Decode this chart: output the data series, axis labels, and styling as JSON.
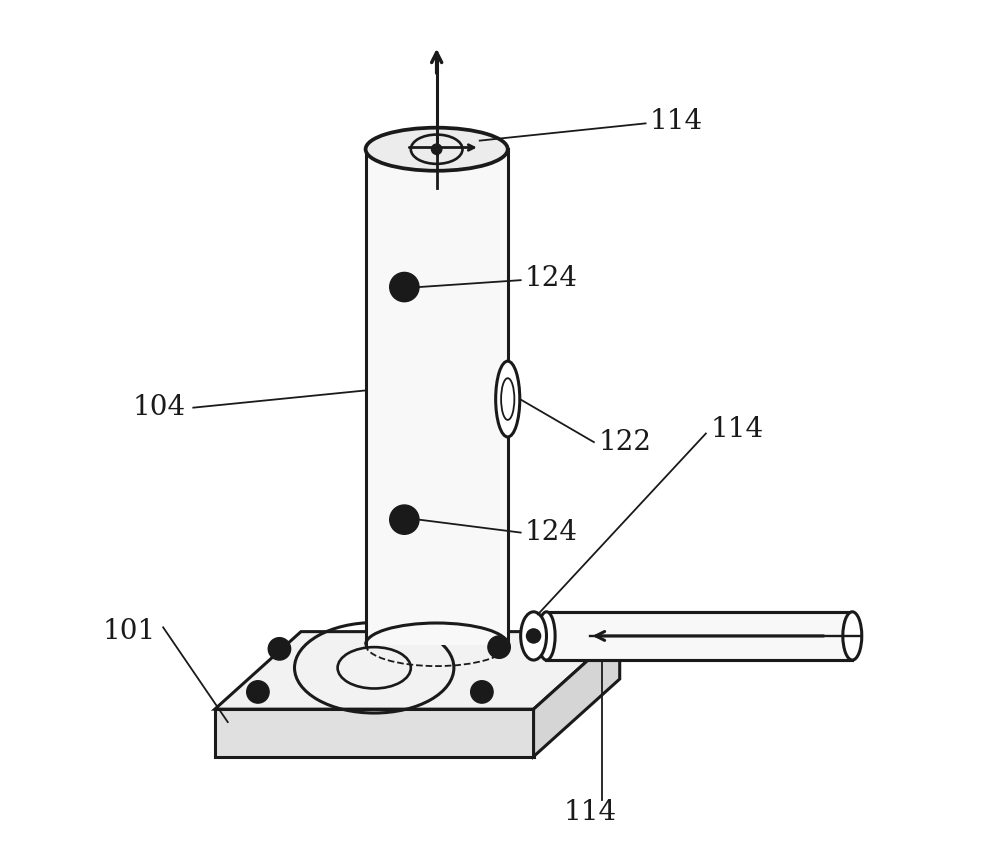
{
  "bg_color": "#ffffff",
  "line_color": "#1a1a1a",
  "linewidth": 2.2,
  "thin_lw": 1.3,
  "figsize": [
    9.81,
    8.67
  ],
  "dpi": 100,
  "font_size": 20,
  "font_family": "DejaVu Serif"
}
